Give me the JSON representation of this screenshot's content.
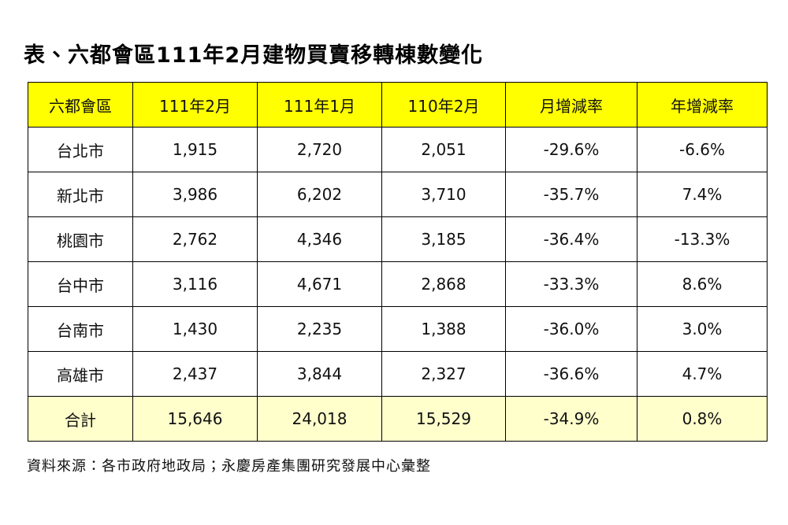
{
  "header": {
    "title": "表、六都會區111年2月建物買賣移轉棟數變化"
  },
  "table": {
    "columns": [
      "六都會區",
      "111年2月",
      "111年1月",
      "110年2月",
      "月增減率",
      "年增減率"
    ],
    "rows": [
      [
        "台北市",
        "1,915",
        "2,720",
        "2,051",
        "-29.6%",
        "-6.6%"
      ],
      [
        "新北市",
        "3,986",
        "6,202",
        "3,710",
        "-35.7%",
        "7.4%"
      ],
      [
        "桃園市",
        "2,762",
        "4,346",
        "3,185",
        "-36.4%",
        "-13.3%"
      ],
      [
        "台中市",
        "3,116",
        "4,671",
        "2,868",
        "-33.3%",
        "8.6%"
      ],
      [
        "台南市",
        "1,430",
        "2,235",
        "1,388",
        "-36.0%",
        "3.0%"
      ],
      [
        "高雄市",
        "2,437",
        "3,844",
        "2,327",
        "-36.6%",
        "4.7%"
      ]
    ],
    "total": [
      "合計",
      "15,646",
      "24,018",
      "15,529",
      "-34.9%",
      "0.8%"
    ]
  },
  "footer": {
    "source": "資料來源：各市政府地政局；永慶房產集團研究發展中心彙整"
  }
}
